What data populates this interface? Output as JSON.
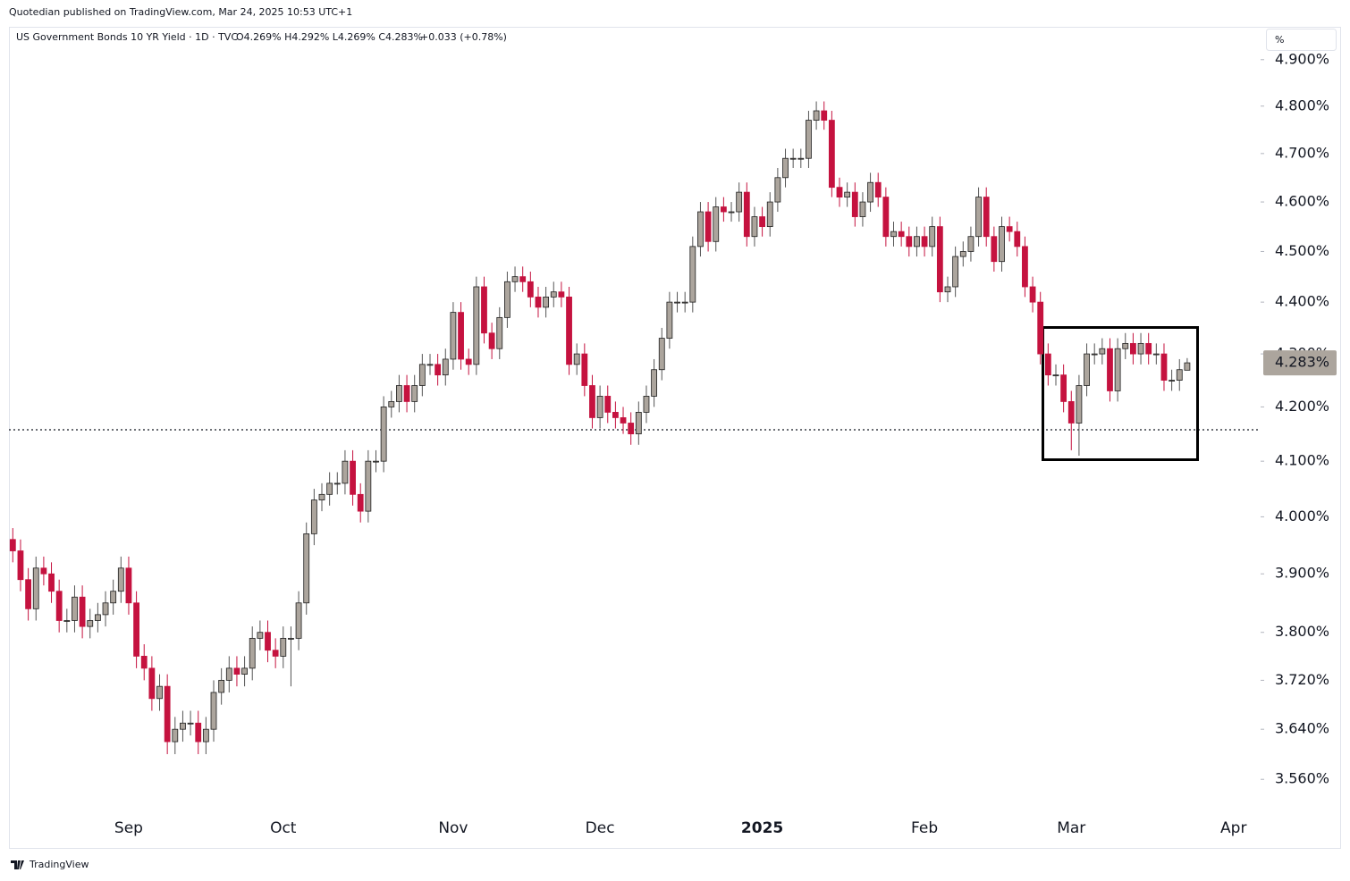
{
  "header": "Quotedian published on TradingView.com, Mar 24, 2025 10:53 UTC+1",
  "footer": "TradingView",
  "chart_data": {
    "type": "candlestick",
    "title": "US Government Bonds 10 YR Yield · 1D · TVC",
    "ohlc_label": "O4.269% H4.292% L4.269% C4.283%",
    "change_label": "+0.033 (+0.78%)",
    "y_unit": "%",
    "log_scale": true,
    "up_color": "#aca59d",
    "down_color": "#c5123f",
    "last_price": {
      "value": 4.283,
      "label": "4.283%"
    },
    "ylim": [
      3.514,
      4.972
    ],
    "yticks": [
      {
        "value": 4.9,
        "label": "4.900%"
      },
      {
        "value": 4.8,
        "label": "4.800%"
      },
      {
        "value": 4.7,
        "label": "4.700%"
      },
      {
        "value": 4.6,
        "label": "4.600%"
      },
      {
        "value": 4.5,
        "label": "4.500%"
      },
      {
        "value": 4.4,
        "label": "4.400%"
      },
      {
        "value": 4.3,
        "label": "4.300%"
      },
      {
        "value": 4.2,
        "label": "4.200%"
      },
      {
        "value": 4.1,
        "label": "4.100%"
      },
      {
        "value": 4.0,
        "label": "4.000%"
      },
      {
        "value": 3.9,
        "label": "3.900%"
      },
      {
        "value": 3.8,
        "label": "3.800%"
      },
      {
        "value": 3.72,
        "label": "3.720%"
      },
      {
        "value": 3.64,
        "label": "3.640%"
      },
      {
        "value": 3.56,
        "label": "3.560%"
      }
    ],
    "categories": [
      null,
      null,
      null,
      null,
      null,
      null,
      null,
      null,
      null,
      null,
      null,
      null,
      null,
      null,
      null,
      "Sep",
      null,
      null,
      null,
      null,
      null,
      null,
      null,
      null,
      null,
      null,
      null,
      null,
      null,
      null,
      null,
      null,
      null,
      null,
      null,
      "Oct",
      null,
      null,
      null,
      null,
      null,
      null,
      null,
      null,
      null,
      null,
      null,
      null,
      null,
      null,
      null,
      null,
      null,
      null,
      null,
      null,
      null,
      "Nov",
      null,
      null,
      null,
      null,
      null,
      null,
      null,
      null,
      null,
      null,
      null,
      null,
      null,
      null,
      null,
      null,
      null,
      null,
      "Dec",
      null,
      null,
      null,
      null,
      null,
      null,
      null,
      null,
      null,
      null,
      null,
      null,
      null,
      null,
      null,
      null,
      null,
      null,
      null,
      null,
      "2025",
      null,
      null,
      null,
      null,
      null,
      null,
      null,
      null,
      null,
      null,
      null,
      null,
      null,
      null,
      null,
      null,
      null,
      null,
      null,
      null,
      "Feb",
      null,
      null,
      null,
      null,
      null,
      null,
      null,
      null,
      null,
      null,
      null,
      null,
      null,
      null,
      null,
      null,
      null,
      null,
      "Mar",
      null,
      null,
      null,
      null,
      null,
      null,
      null,
      null,
      null,
      null,
      null,
      null,
      null,
      null,
      null,
      null,
      null,
      null,
      null,
      null,
      "Apr",
      null,
      null,
      null
    ],
    "open": [
      3.96,
      3.94,
      3.89,
      3.84,
      3.91,
      3.9,
      3.87,
      3.82,
      3.82,
      3.86,
      3.81,
      3.82,
      3.83,
      3.85,
      3.87,
      3.91,
      3.85,
      3.76,
      3.74,
      3.69,
      3.71,
      3.62,
      3.64,
      3.65,
      3.65,
      3.62,
      3.64,
      3.7,
      3.72,
      3.74,
      3.73,
      3.74,
      3.79,
      3.8,
      3.77,
      3.76,
      3.79,
      3.79,
      3.85,
      3.97,
      4.03,
      4.04,
      4.06,
      4.06,
      4.1,
      4.04,
      4.01,
      4.1,
      4.1,
      4.2,
      4.21,
      4.24,
      4.21,
      4.24,
      4.28,
      4.28,
      4.26,
      4.29,
      4.38,
      4.29,
      4.28,
      4.43,
      4.34,
      4.31,
      4.37,
      4.44,
      4.45,
      4.44,
      4.41,
      4.39,
      4.41,
      4.42,
      4.41,
      4.28,
      4.3,
      4.24,
      4.18,
      4.22,
      4.19,
      4.18,
      4.17,
      4.15,
      4.19,
      4.22,
      4.27,
      4.33,
      4.4,
      4.4,
      4.4,
      4.51,
      4.58,
      4.52,
      4.59,
      4.58,
      4.58,
      4.62,
      4.53,
      4.57,
      4.55,
      4.6,
      4.65,
      4.69,
      4.69,
      4.69,
      4.77,
      4.79,
      4.77,
      4.63,
      4.61,
      4.62,
      4.57,
      4.6,
      4.64,
      4.61,
      4.53,
      4.54,
      4.53,
      4.51,
      4.53,
      4.51,
      4.55,
      4.42,
      4.43,
      4.49,
      4.5,
      4.53,
      4.61,
      4.53,
      4.48,
      4.55,
      4.54,
      4.51,
      4.43,
      4.4,
      4.3,
      4.26,
      4.26,
      4.21,
      4.17,
      4.24,
      4.3,
      4.3,
      4.31,
      4.23,
      4.31,
      4.32,
      4.3,
      4.32,
      4.3,
      4.3,
      4.25,
      4.25,
      4.269,
      null,
      null,
      null,
      null,
      null,
      null,
      null,
      null,
      null
    ],
    "high": [
      3.98,
      3.96,
      3.91,
      3.93,
      3.93,
      3.92,
      3.89,
      3.84,
      3.88,
      3.88,
      3.84,
      3.85,
      3.87,
      3.89,
      3.93,
      3.93,
      3.87,
      3.78,
      3.76,
      3.73,
      3.73,
      3.66,
      3.67,
      3.67,
      3.67,
      3.66,
      3.72,
      3.74,
      3.76,
      3.76,
      3.76,
      3.81,
      3.82,
      3.82,
      3.79,
      3.81,
      3.81,
      3.87,
      3.99,
      4.05,
      4.06,
      4.08,
      4.08,
      4.12,
      4.12,
      4.06,
      4.12,
      4.12,
      4.22,
      4.23,
      4.26,
      4.26,
      4.26,
      4.3,
      4.3,
      4.3,
      4.31,
      4.4,
      4.4,
      4.31,
      4.45,
      4.45,
      4.36,
      4.39,
      4.46,
      4.47,
      4.47,
      4.46,
      4.43,
      4.43,
      4.44,
      4.44,
      4.43,
      4.32,
      4.32,
      4.26,
      4.24,
      4.24,
      4.21,
      4.2,
      4.19,
      4.21,
      4.24,
      4.29,
      4.35,
      4.42,
      4.42,
      4.42,
      4.53,
      4.6,
      4.6,
      4.61,
      4.61,
      4.6,
      4.64,
      4.64,
      4.59,
      4.59,
      4.62,
      4.67,
      4.71,
      4.71,
      4.71,
      4.79,
      4.81,
      4.81,
      4.79,
      4.65,
      4.64,
      4.64,
      4.62,
      4.66,
      4.66,
      4.63,
      4.56,
      4.56,
      4.55,
      4.55,
      4.55,
      4.57,
      4.57,
      4.45,
      4.51,
      4.52,
      4.55,
      4.63,
      4.63,
      4.55,
      4.57,
      4.57,
      4.56,
      4.53,
      4.45,
      4.42,
      4.32,
      4.28,
      4.28,
      4.23,
      4.26,
      4.32,
      4.32,
      4.33,
      4.33,
      4.33,
      4.34,
      4.34,
      4.34,
      4.34,
      4.32,
      4.32,
      4.27,
      4.29,
      4.292,
      null,
      null,
      null,
      null,
      null,
      null,
      null,
      null,
      null
    ],
    "low": [
      3.92,
      3.87,
      3.82,
      3.82,
      3.88,
      3.85,
      3.8,
      3.8,
      3.8,
      3.79,
      3.79,
      3.8,
      3.81,
      3.83,
      3.85,
      3.83,
      3.74,
      3.72,
      3.67,
      3.67,
      3.6,
      3.6,
      3.62,
      3.63,
      3.6,
      3.6,
      3.62,
      3.68,
      3.7,
      3.71,
      3.71,
      3.72,
      3.77,
      3.75,
      3.74,
      3.74,
      3.71,
      3.77,
      3.83,
      3.95,
      4.01,
      4.02,
      4.04,
      4.04,
      4.02,
      3.99,
      3.99,
      4.08,
      4.08,
      4.18,
      4.19,
      4.19,
      4.19,
      4.22,
      4.26,
      4.24,
      4.24,
      4.27,
      4.27,
      4.26,
      4.26,
      4.32,
      4.29,
      4.29,
      4.35,
      4.42,
      4.42,
      4.39,
      4.37,
      4.37,
      4.39,
      4.39,
      4.26,
      4.26,
      4.22,
      4.16,
      4.16,
      4.17,
      4.16,
      4.15,
      4.13,
      4.13,
      4.17,
      4.2,
      4.25,
      4.31,
      4.38,
      4.38,
      4.38,
      4.49,
      4.5,
      4.5,
      4.56,
      4.56,
      4.56,
      4.51,
      4.51,
      4.53,
      4.53,
      4.58,
      4.63,
      4.67,
      4.67,
      4.67,
      4.75,
      4.75,
      4.61,
      4.59,
      4.59,
      4.55,
      4.55,
      4.58,
      4.59,
      4.51,
      4.51,
      4.51,
      4.49,
      4.49,
      4.49,
      4.49,
      4.4,
      4.4,
      4.41,
      4.47,
      4.48,
      4.51,
      4.51,
      4.46,
      4.46,
      4.52,
      4.49,
      4.41,
      4.38,
      4.28,
      4.24,
      4.24,
      4.19,
      4.12,
      4.11,
      4.22,
      4.28,
      4.28,
      4.21,
      4.21,
      4.29,
      4.28,
      4.28,
      4.28,
      4.28,
      4.23,
      4.23,
      4.23,
      4.269,
      null,
      null,
      null,
      null,
      null,
      null,
      null,
      null,
      null
    ],
    "close": [
      3.94,
      3.89,
      3.84,
      3.91,
      3.9,
      3.87,
      3.82,
      3.82,
      3.86,
      3.81,
      3.82,
      3.83,
      3.85,
      3.87,
      3.91,
      3.85,
      3.76,
      3.74,
      3.69,
      3.71,
      3.62,
      3.64,
      3.65,
      3.65,
      3.62,
      3.64,
      3.7,
      3.72,
      3.74,
      3.73,
      3.74,
      3.79,
      3.8,
      3.77,
      3.76,
      3.79,
      3.79,
      3.85,
      3.97,
      4.03,
      4.04,
      4.06,
      4.06,
      4.1,
      4.04,
      4.01,
      4.1,
      4.1,
      4.2,
      4.21,
      4.24,
      4.21,
      4.24,
      4.28,
      4.28,
      4.26,
      4.29,
      4.38,
      4.29,
      4.28,
      4.43,
      4.34,
      4.31,
      4.37,
      4.44,
      4.45,
      4.44,
      4.41,
      4.39,
      4.41,
      4.42,
      4.41,
      4.28,
      4.3,
      4.24,
      4.18,
      4.22,
      4.19,
      4.18,
      4.17,
      4.15,
      4.19,
      4.22,
      4.27,
      4.33,
      4.4,
      4.4,
      4.4,
      4.51,
      4.58,
      4.52,
      4.59,
      4.58,
      4.58,
      4.62,
      4.53,
      4.57,
      4.55,
      4.6,
      4.65,
      4.69,
      4.69,
      4.69,
      4.77,
      4.79,
      4.77,
      4.63,
      4.61,
      4.62,
      4.57,
      4.6,
      4.64,
      4.61,
      4.53,
      4.54,
      4.53,
      4.51,
      4.53,
      4.51,
      4.55,
      4.42,
      4.43,
      4.49,
      4.5,
      4.53,
      4.61,
      4.53,
      4.48,
      4.55,
      4.54,
      4.51,
      4.43,
      4.4,
      4.3,
      4.26,
      4.26,
      4.21,
      4.17,
      4.24,
      4.3,
      4.3,
      4.31,
      4.23,
      4.31,
      4.32,
      4.3,
      4.32,
      4.3,
      4.3,
      4.25,
      4.25,
      4.27,
      4.283,
      null,
      null,
      null,
      null,
      null,
      null,
      null,
      null,
      null
    ]
  }
}
